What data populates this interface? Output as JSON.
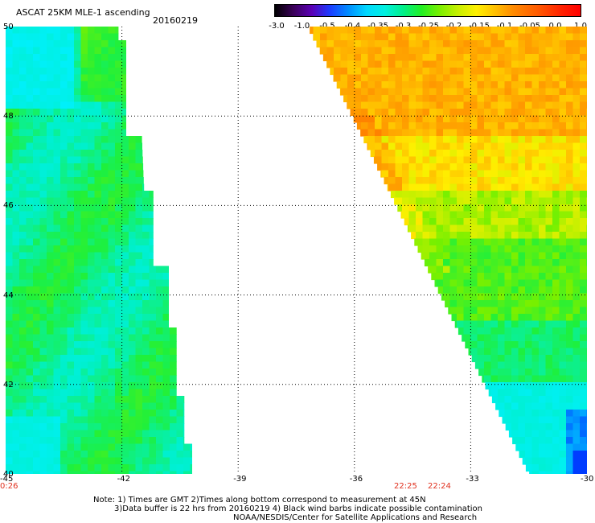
{
  "title": "ASCAT 25KM MLE-1 ascending",
  "date": "20160219",
  "colorbar": {
    "ticks": [
      "-3.0",
      "-1.0",
      "-0.5",
      "-0.4",
      "-0.35",
      "-0.3",
      "-0.25",
      "-0.2",
      "-0.15",
      "-0.1",
      "-0.05",
      "0.0",
      "1.0"
    ]
  },
  "map": {
    "lon_range": [
      -45,
      -30
    ],
    "lat_range": [
      40,
      50
    ],
    "lon_ticks": [
      "-45",
      "-42",
      "-39",
      "-36",
      "-33",
      "-30"
    ],
    "lat_ticks": [
      "50",
      "48",
      "46",
      "44",
      "42",
      "40"
    ],
    "grid": true,
    "swaths": [
      {
        "name": "west",
        "color_hint": "green-cyan"
      },
      {
        "name": "east",
        "color_hint": "orange-yellow-green-cyan-blue"
      }
    ]
  },
  "times": {
    "left": "0:26",
    "t1": "22:25",
    "t2": "22:24"
  },
  "notes": {
    "line1": "Note: 1) Times are GMT 2)Times along bottom correspond to measurement at 45N",
    "line2": "3)Data buffer is 22 hrs from 20160219 4) Black wind barbs indicate possible contamination",
    "line3": "NOAA/NESDIS/Center for Satellite Applications and Research"
  },
  "colors": {
    "grid": "#000000",
    "time_text": "#e0301e"
  }
}
